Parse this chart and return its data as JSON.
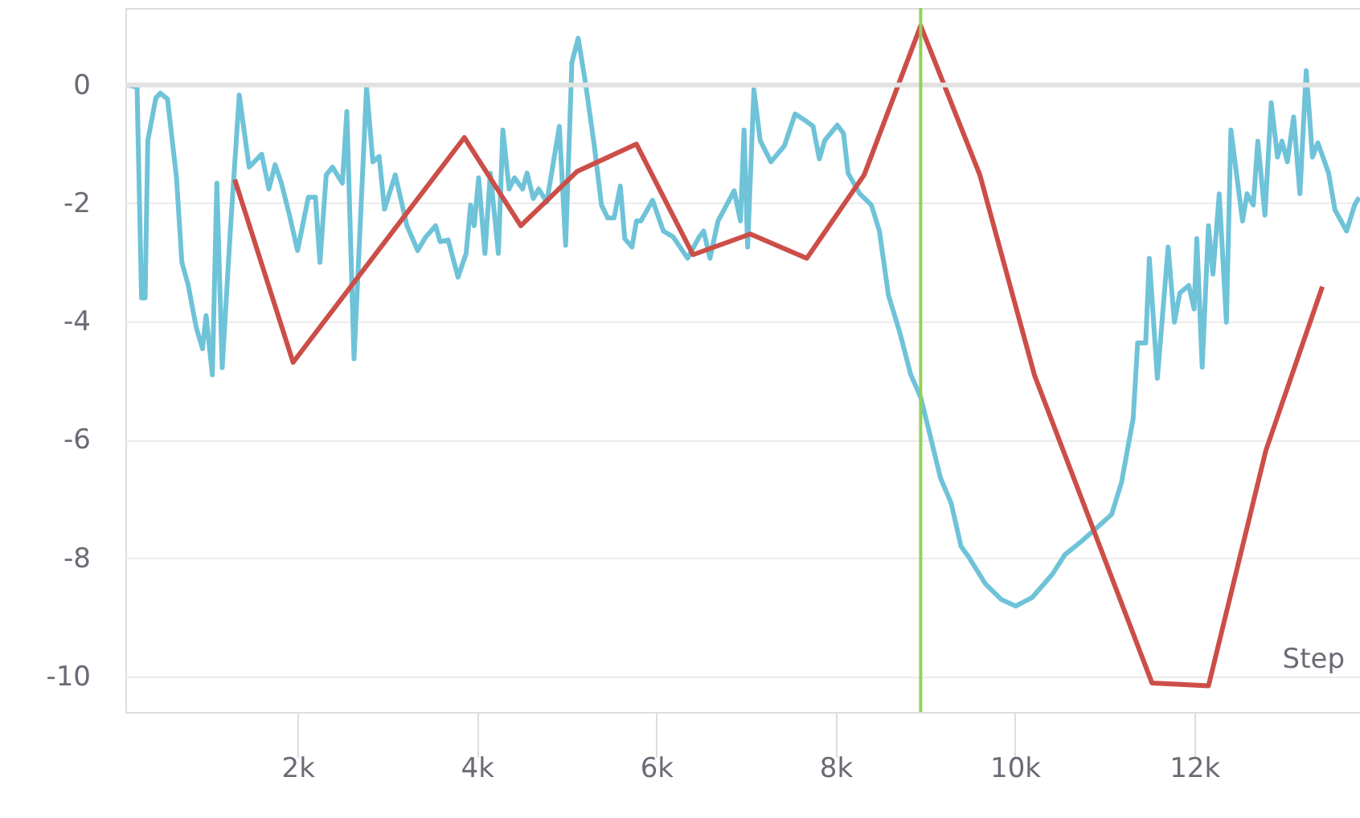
{
  "chart_data": {
    "type": "line",
    "xlabel": "Step",
    "xlim": [
      80,
      13850
    ],
    "ylim": [
      -10.6,
      1.3
    ],
    "xticks": [
      {
        "value": 2000,
        "label": "2k"
      },
      {
        "value": 4000,
        "label": "4k"
      },
      {
        "value": 6000,
        "label": "6k"
      },
      {
        "value": 8000,
        "label": "8k"
      },
      {
        "value": 10000,
        "label": "10k"
      },
      {
        "value": 12000,
        "label": "12k"
      }
    ],
    "yticks": [
      -10,
      -8,
      -6,
      -4,
      -2,
      0
    ],
    "grid": "y",
    "ref_lines": [
      {
        "axis": "y",
        "value": 0,
        "color": "#e2e2e2"
      },
      {
        "axis": "x",
        "value": 8950,
        "color": "#93cf5a"
      }
    ],
    "series": [
      {
        "color": "#6fc3d8",
        "x": [
          100,
          210,
          260,
          300,
          330,
          420,
          470,
          550,
          650,
          710,
          780,
          870,
          940,
          980,
          1050,
          1100,
          1160,
          1250,
          1350,
          1460,
          1600,
          1680,
          1750,
          1820,
          1910,
          2000,
          2120,
          2200,
          2250,
          2320,
          2390,
          2500,
          2550,
          2630,
          2770,
          2840,
          2910,
          2970,
          3090,
          3220,
          3340,
          3430,
          3540,
          3590,
          3680,
          3790,
          3880,
          3930,
          3970,
          4020,
          4090,
          4150,
          4240,
          4290,
          4360,
          4420,
          4510,
          4560,
          4630,
          4690,
          4780,
          4920,
          4990,
          5060,
          5130,
          5210,
          5310,
          5390,
          5460,
          5530,
          5600,
          5650,
          5730,
          5780,
          5830,
          5960,
          6080,
          6190,
          6350,
          6480,
          6530,
          6600,
          6690,
          6870,
          6940,
          6980,
          7020,
          7090,
          7160,
          7280,
          7430,
          7550,
          7680,
          7750,
          7820,
          7880,
          8020,
          8090,
          8140,
          8270,
          8400,
          8490,
          8590,
          8720,
          8840,
          8950,
          9040,
          9170,
          9290,
          9400,
          9490,
          9670,
          9850,
          10010,
          10190,
          10420,
          10560,
          10740,
          10920,
          11080,
          11190,
          11320,
          11370,
          11460,
          11500,
          11590,
          11710,
          11780,
          11840,
          11940,
          12000,
          12030,
          12090,
          12160,
          12210,
          12280,
          12360,
          12410,
          12540,
          12590,
          12660,
          12710,
          12790,
          12860,
          12930,
          12980,
          13040,
          13110,
          13180,
          13250,
          13320,
          13380,
          13500,
          13570,
          13700,
          13790,
          13840
        ],
        "values": [
          0,
          -0.04,
          -3.6,
          -3.6,
          -0.94,
          -0.22,
          -0.14,
          -0.24,
          -1.57,
          -3.0,
          -3.38,
          -4.1,
          -4.46,
          -3.9,
          -4.9,
          -1.66,
          -4.78,
          -2.47,
          -0.17,
          -1.39,
          -1.17,
          -1.76,
          -1.35,
          -1.66,
          -2.2,
          -2.8,
          -1.9,
          -1.9,
          -3.0,
          -1.52,
          -1.39,
          -1.66,
          -0.45,
          -4.63,
          -0.04,
          -1.3,
          -1.21,
          -2.1,
          -1.52,
          -2.38,
          -2.8,
          -2.57,
          -2.38,
          -2.65,
          -2.62,
          -3.25,
          -2.85,
          -2.03,
          -2.38,
          -1.57,
          -2.85,
          -1.49,
          -2.85,
          -0.76,
          -1.76,
          -1.57,
          -1.76,
          -1.49,
          -1.92,
          -1.76,
          -1.98,
          -0.7,
          -2.71,
          0.38,
          0.79,
          0.05,
          -1.03,
          -2.03,
          -2.25,
          -2.25,
          -1.71,
          -2.6,
          -2.74,
          -2.3,
          -2.3,
          -1.95,
          -2.47,
          -2.57,
          -2.93,
          -2.57,
          -2.47,
          -2.93,
          -2.3,
          -1.79,
          -2.3,
          -0.76,
          -2.74,
          -0.08,
          -0.94,
          -1.3,
          -1.03,
          -0.49,
          -0.62,
          -0.7,
          -1.25,
          -0.94,
          -0.68,
          -0.82,
          -1.49,
          -1.84,
          -2.03,
          -2.47,
          -3.55,
          -4.2,
          -4.9,
          -5.28,
          -5.83,
          -6.64,
          -7.07,
          -7.8,
          -7.99,
          -8.43,
          -8.7,
          -8.81,
          -8.67,
          -8.27,
          -7.94,
          -7.72,
          -7.48,
          -7.26,
          -6.72,
          -5.64,
          -4.36,
          -4.36,
          -2.93,
          -4.96,
          -2.74,
          -4.01,
          -3.52,
          -3.39,
          -3.79,
          -2.6,
          -4.77,
          -2.38,
          -3.2,
          -1.84,
          -4.01,
          -0.76,
          -2.3,
          -1.84,
          -2.03,
          -0.95,
          -2.2,
          -0.3,
          -1.22,
          -0.95,
          -1.3,
          -0.54,
          -1.84,
          0.24,
          -1.22,
          -0.98,
          -1.49,
          -2.11,
          -2.47,
          -2.03,
          -1.9
        ]
      },
      {
        "color": "#cc4e48",
        "x": [
          1300,
          1950,
          3860,
          4490,
          5120,
          5780,
          6410,
          7050,
          7680,
          8320,
          8950,
          9610,
          10220,
          11530,
          12160,
          12800,
          13430
        ],
        "values": [
          -1.6,
          -4.69,
          -0.89,
          -2.38,
          -1.46,
          -1.0,
          -2.87,
          -2.52,
          -2.93,
          -1.52,
          1.0,
          -1.52,
          -4.91,
          -10.11,
          -10.16,
          -6.18,
          -3.41
        ]
      }
    ]
  }
}
